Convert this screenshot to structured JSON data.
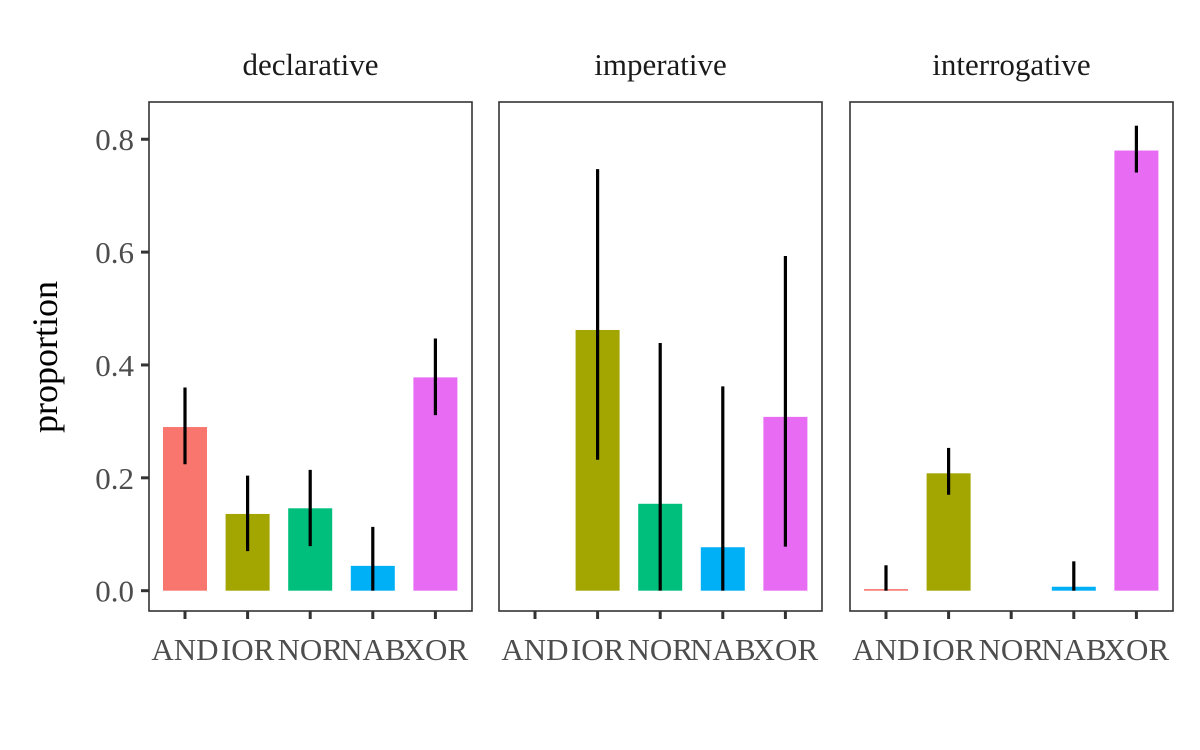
{
  "chart_data": {
    "type": "bar",
    "ylabel": "proportion",
    "ylim": [
      -0.036,
      0.866
    ],
    "y_ticks": [
      "0.0",
      "0.2",
      "0.4",
      "0.6",
      "0.8"
    ],
    "categories": [
      "AND",
      "IOR",
      "NOR",
      "NAB",
      "XOR"
    ],
    "colors": {
      "AND": "#F8766D",
      "IOR": "#A3A500",
      "NOR": "#00BF7D",
      "NAB": "#00B0F6",
      "XOR": "#E76BF3"
    },
    "facets": [
      {
        "title": "declarative",
        "values": [
          0.29,
          0.136,
          0.146,
          0.044,
          0.378
        ],
        "ci_low": [
          0.224,
          0.07,
          0.079,
          0.0,
          0.311
        ],
        "ci_high": [
          0.36,
          0.204,
          0.214,
          0.113,
          0.447
        ]
      },
      {
        "title": "imperative",
        "values": [
          0.0,
          0.462,
          0.154,
          0.077,
          0.308
        ],
        "ci_low": [
          null,
          0.232,
          0.0,
          0.0,
          0.078
        ],
        "ci_high": [
          null,
          0.747,
          0.439,
          0.362,
          0.593
        ]
      },
      {
        "title": "interrogative",
        "values": [
          0.002,
          0.208,
          0.0,
          0.007,
          0.78
        ],
        "ci_low": [
          0.0,
          0.17,
          null,
          0.0,
          0.741
        ],
        "ci_high": [
          0.045,
          0.253,
          null,
          0.052,
          0.824
        ]
      }
    ]
  }
}
